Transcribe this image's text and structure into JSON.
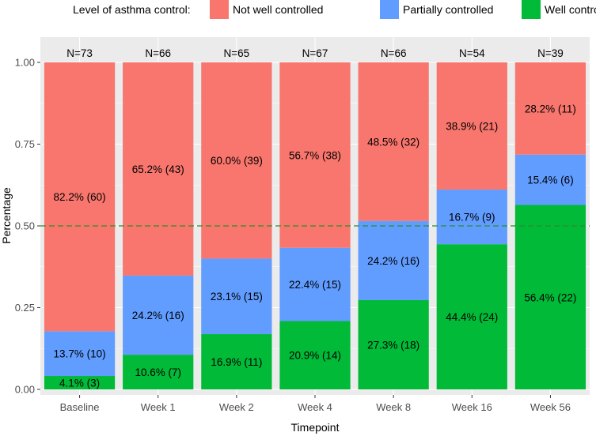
{
  "chart_data": {
    "type": "bar",
    "stacked": true,
    "xlabel": "Timepoint",
    "ylabel": "Percentage",
    "ylim": [
      0,
      1
    ],
    "yticks": [
      "0.00",
      "0.25",
      "0.50",
      "0.75",
      "1.00"
    ],
    "reference_line": {
      "y": 0.5,
      "style": "dashed",
      "color": "#2e8b2e"
    },
    "legend": {
      "title": "Level of asthma control:",
      "position": "top",
      "entries": [
        "Not well controlled",
        "Partially controlled",
        "Well controlled"
      ]
    },
    "categories": [
      "Baseline",
      "Week 1",
      "Week 2",
      "Week 4",
      "Week 8",
      "Week 16",
      "Week 56"
    ],
    "n_labels": [
      "N=73",
      "N=66",
      "N=65",
      "N=67",
      "N=66",
      "N=54",
      "N=39"
    ],
    "series": [
      {
        "name": "Well controlled",
        "color": "#00ba38",
        "values": [
          0.041,
          0.106,
          0.169,
          0.209,
          0.273,
          0.444,
          0.564
        ],
        "labels": [
          "4.1% (3)",
          "10.6% (7)",
          "16.9% (11)",
          "20.9% (14)",
          "27.3% (18)",
          "44.4% (24)",
          "56.4% (22)"
        ]
      },
      {
        "name": "Partially controlled",
        "color": "#619cff",
        "values": [
          0.137,
          0.242,
          0.231,
          0.224,
          0.242,
          0.167,
          0.154
        ],
        "labels": [
          "13.7% (10)",
          "24.2% (16)",
          "23.1% (15)",
          "22.4% (15)",
          "24.2% (16)",
          "16.7% (9)",
          "15.4% (6)"
        ]
      },
      {
        "name": "Not well controlled",
        "color": "#f8766d",
        "values": [
          0.822,
          0.652,
          0.6,
          0.567,
          0.485,
          0.389,
          0.282
        ],
        "labels": [
          "82.2% (60)",
          "65.2% (43)",
          "60.0% (39)",
          "56.7% (38)",
          "48.5% (32)",
          "38.9% (21)",
          "28.2% (11)"
        ]
      }
    ],
    "panel_background": "#ebebeb",
    "grid": true
  }
}
